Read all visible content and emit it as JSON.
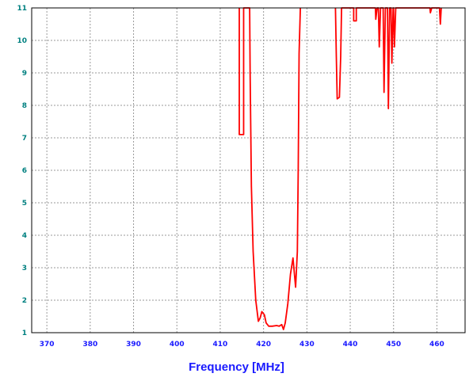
{
  "chart_data": {
    "type": "line",
    "xlabel": "Frequency [MHz]",
    "ylabel": "",
    "xlim": [
      366.5,
      466.5
    ],
    "ylim": [
      1,
      11
    ],
    "xticks": [
      370,
      380,
      390,
      400,
      410,
      420,
      430,
      440,
      450,
      460
    ],
    "yticks": [
      1,
      2,
      3,
      4,
      5,
      6,
      7,
      8,
      9,
      10,
      11
    ],
    "grid": true,
    "line_color": "#ff0000",
    "series": [
      {
        "values": [
          [
            414.4,
            11
          ],
          [
            414.4,
            7.1
          ],
          [
            415.4,
            7.1
          ],
          [
            415.4,
            11
          ],
          [
            416.8,
            11
          ],
          [
            416.9,
            9.0
          ],
          [
            417.2,
            5.5
          ],
          [
            417.6,
            3.5
          ],
          [
            418.2,
            2.0
          ],
          [
            418.8,
            1.35
          ],
          [
            419.2,
            1.45
          ],
          [
            419.6,
            1.65
          ],
          [
            420.2,
            1.55
          ],
          [
            420.6,
            1.3
          ],
          [
            421.2,
            1.2
          ],
          [
            422.0,
            1.2
          ],
          [
            423.0,
            1.22
          ],
          [
            423.6,
            1.2
          ],
          [
            424.2,
            1.25
          ],
          [
            424.6,
            1.1
          ],
          [
            425.0,
            1.3
          ],
          [
            425.6,
            1.9
          ],
          [
            426.2,
            2.8
          ],
          [
            426.8,
            3.3
          ],
          [
            427.2,
            2.7
          ],
          [
            427.4,
            2.4
          ],
          [
            427.8,
            3.5
          ],
          [
            428.0,
            6.0
          ],
          [
            428.2,
            9.6
          ],
          [
            428.5,
            11
          ]
        ]
      },
      {
        "values": [
          [
            436.6,
            11
          ],
          [
            436.8,
            9.5
          ],
          [
            437.0,
            8.2
          ],
          [
            437.5,
            8.25
          ],
          [
            437.8,
            9.5
          ],
          [
            438.0,
            11
          ],
          [
            440.8,
            11
          ],
          [
            440.8,
            10.6
          ],
          [
            441.4,
            10.6
          ],
          [
            441.4,
            11
          ],
          [
            445.8,
            11
          ],
          [
            445.9,
            10.65
          ],
          [
            446.2,
            11
          ],
          [
            446.5,
            11
          ],
          [
            446.7,
            9.8
          ],
          [
            447.0,
            11
          ],
          [
            447.6,
            11
          ],
          [
            447.8,
            8.4
          ],
          [
            448.1,
            11
          ],
          [
            448.6,
            11
          ],
          [
            448.8,
            7.9
          ],
          [
            449.1,
            11
          ],
          [
            449.4,
            11
          ],
          [
            449.6,
            9.3
          ],
          [
            449.9,
            11
          ],
          [
            450.0,
            11
          ],
          [
            450.2,
            9.8
          ],
          [
            450.5,
            11
          ],
          [
            458.4,
            11
          ],
          [
            458.5,
            10.85
          ],
          [
            458.8,
            11
          ],
          [
            460.6,
            11
          ],
          [
            460.8,
            10.5
          ],
          [
            461.0,
            11
          ]
        ]
      }
    ]
  }
}
